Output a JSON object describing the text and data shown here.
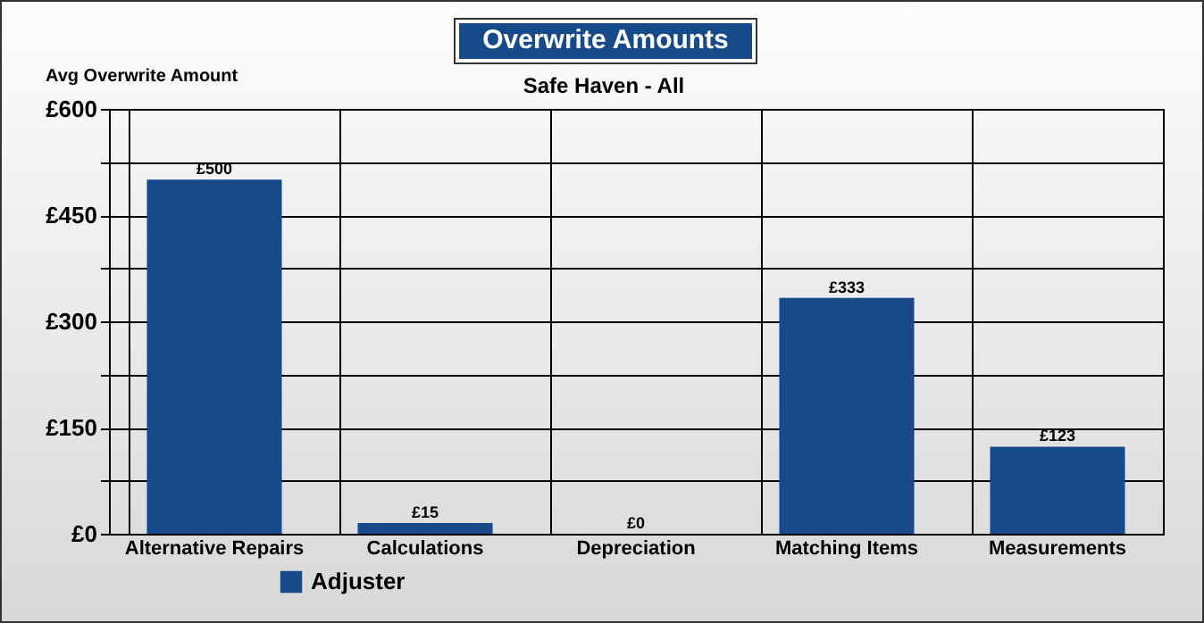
{
  "chart_data": {
    "type": "bar",
    "title": "Overwrite Amounts",
    "subtitle": "Safe Haven - All",
    "ylabel": "Avg Overwrite Amount",
    "categories": [
      "Alternative Repairs",
      "Calculations",
      "Depreciation",
      "Matching Items",
      "Measurements"
    ],
    "series": [
      {
        "name": "Adjuster",
        "color": "#174a8b",
        "values": [
          500,
          15,
          0,
          333,
          123
        ],
        "value_labels": [
          "£500",
          "£15",
          "£0",
          "£333",
          "£123"
        ]
      }
    ],
    "ylim": [
      0,
      600
    ],
    "yticks": [
      {
        "value": 0,
        "label": "£0"
      },
      {
        "value": 75,
        "label": null
      },
      {
        "value": 150,
        "label": "£150"
      },
      {
        "value": 225,
        "label": null
      },
      {
        "value": 300,
        "label": "£300"
      },
      {
        "value": 375,
        "label": null
      },
      {
        "value": 450,
        "label": "£450"
      },
      {
        "value": 525,
        "label": null
      },
      {
        "value": 600,
        "label": "£600"
      }
    ],
    "grid": true,
    "legend": "bottom left"
  }
}
